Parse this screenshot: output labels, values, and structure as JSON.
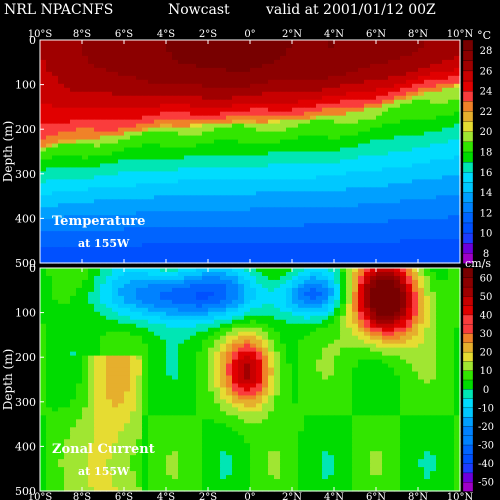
{
  "header": {
    "source": "NRL NPACNFS",
    "product": "Nowcast",
    "valid": "valid at 2001/01/12 00Z"
  },
  "colors": {
    "background": "#000000",
    "text": "#ffffff"
  },
  "chart_data": [
    {
      "type": "heatmap",
      "title": "Temperature",
      "subtitle": "at 155W",
      "xlabel": "",
      "ylabel": "Depth (m)",
      "x_ticks": [
        "10°S",
        "8°S",
        "6°S",
        "4°S",
        "2°S",
        "0°",
        "2°N",
        "4°N",
        "6°N",
        "8°N",
        "10°N"
      ],
      "x_values": [
        -10,
        -8,
        -6,
        -4,
        -2,
        0,
        2,
        4,
        6,
        8,
        10
      ],
      "y_ticks": [
        "0",
        "100",
        "200",
        "300",
        "400",
        "500"
      ],
      "y_values": [
        0,
        100,
        200,
        300,
        400,
        500
      ],
      "xlim": [
        -10,
        10
      ],
      "ylim": [
        0,
        500
      ],
      "colorbar_unit": "°C",
      "colorbar_ticks": [
        "8",
        "10",
        "12",
        "14",
        "16",
        "18",
        "20",
        "22",
        "24",
        "26",
        "28"
      ],
      "colorbar_range": [
        7,
        29
      ],
      "colorbar_values": [
        7,
        8,
        9,
        10,
        11,
        12,
        13,
        14,
        15,
        16,
        17,
        18,
        19,
        20,
        21,
        22,
        23,
        24,
        25,
        26,
        27,
        28,
        29
      ],
      "thermocline_depth_by_lon": {
        "x": [
          -10,
          -8,
          -6,
          -4,
          -2,
          0,
          2,
          4,
          6,
          8,
          10
        ],
        "depth_20C": [
          240,
          225,
          210,
          195,
          190,
          185,
          180,
          170,
          150,
          125,
          100
        ]
      },
      "surface_temperature_by_lon": {
        "x": [
          -10,
          -8,
          -6,
          -4,
          -2,
          0,
          2,
          4,
          6,
          8,
          10
        ],
        "sst": [
          26,
          27,
          27.5,
          28,
          28.5,
          28.5,
          28,
          28,
          27.5,
          27,
          26.5
        ]
      },
      "deep_temperature": 8
    },
    {
      "type": "heatmap",
      "title": "Zonal Current",
      "subtitle": "at 155W",
      "xlabel": "",
      "ylabel": "Depth (m)",
      "x_ticks": [
        "10°S",
        "8°S",
        "6°S",
        "4°S",
        "2°S",
        "0°",
        "2°N",
        "4°N",
        "6°N",
        "8°N",
        "10°N"
      ],
      "x_values": [
        -10,
        -8,
        -6,
        -4,
        -2,
        0,
        2,
        4,
        6,
        8,
        10
      ],
      "y_ticks": [
        "0",
        "100",
        "200",
        "300",
        "400",
        "500"
      ],
      "y_values": [
        0,
        100,
        200,
        300,
        400,
        500
      ],
      "xlim": [
        -10,
        10
      ],
      "ylim": [
        0,
        500
      ],
      "colorbar_unit": "cm/s",
      "colorbar_ticks": [
        "-50",
        "-40",
        "-30",
        "-20",
        "-10",
        "0",
        "10",
        "20",
        "30",
        "40",
        "50",
        "60"
      ],
      "colorbar_range": [
        -55,
        65
      ],
      "colorbar_values": [
        -55,
        -50,
        -45,
        -40,
        -35,
        -30,
        -25,
        -20,
        -15,
        -10,
        -5,
        0,
        5,
        10,
        15,
        20,
        25,
        30,
        35,
        40,
        45,
        50,
        55,
        60,
        65
      ],
      "features": [
        {
          "name": "undercurrent",
          "lon": 0,
          "depth": 230,
          "lon_width": 1.2,
          "depth_width": 80,
          "peak": 45
        },
        {
          "name": "countercurrent",
          "lon": 6.5,
          "depth": 70,
          "lon_width": 1.6,
          "depth_width": 90,
          "peak": 65
        },
        {
          "name": "south_equatorial_current",
          "lon": -3,
          "depth": 60,
          "lon_width": 3.5,
          "depth_width": 60,
          "peak": -40
        },
        {
          "name": "westward_north",
          "lon": 3,
          "depth": 60,
          "lon_width": 1.5,
          "depth_width": 50,
          "peak": -30
        }
      ]
    }
  ]
}
